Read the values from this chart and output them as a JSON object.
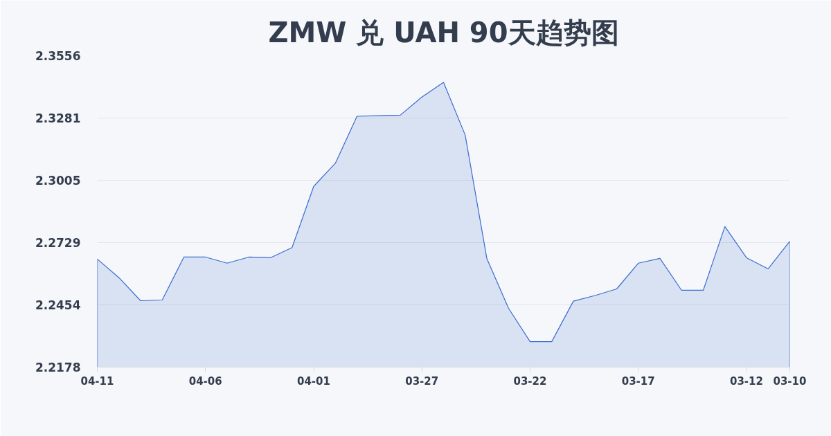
{
  "chart_data": {
    "type": "area",
    "title": "ZMW 兑 UAH 90天趋势图",
    "categories": [
      "04-11",
      null,
      null,
      null,
      null,
      "04-06",
      null,
      null,
      null,
      null,
      "04-01",
      null,
      null,
      null,
      null,
      "03-27",
      null,
      null,
      null,
      null,
      "03-22",
      null,
      null,
      null,
      null,
      "03-17",
      null,
      null,
      null,
      null,
      "03-12",
      null,
      "03-10"
    ],
    "values": [
      2.2656,
      2.2574,
      2.2472,
      2.2475,
      2.2665,
      2.2665,
      2.2638,
      2.2665,
      2.2662,
      2.2707,
      2.2978,
      2.308,
      2.3288,
      2.3291,
      2.3293,
      2.3373,
      2.3438,
      2.3205,
      2.2659,
      2.2439,
      2.2291,
      2.2291,
      2.247,
      2.2495,
      2.2524,
      2.2638,
      2.2659,
      2.2518,
      2.2518,
      2.28,
      2.2662,
      2.2613,
      2.2735
    ],
    "color": "#3a6bd1",
    "ylim": [
      2.2178,
      2.3556
    ],
    "yticks": [
      2.2178,
      2.2454,
      2.2729,
      2.3005,
      2.3281,
      2.3556
    ],
    "grid": "y"
  }
}
